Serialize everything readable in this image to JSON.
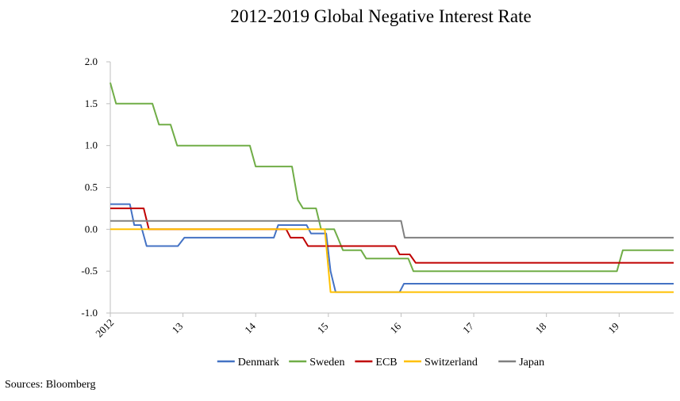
{
  "chart_data": {
    "type": "line",
    "title": "2012-2019 Global Negative Interest Rate",
    "xlabel": "",
    "ylabel": "",
    "xlim": [
      2012.0,
      2019.75
    ],
    "ylim": [
      -1.0,
      2.0
    ],
    "y_ticks": [
      2.0,
      1.5,
      1.0,
      0.5,
      0.0,
      -0.5,
      -1.0
    ],
    "y_tick_labels": [
      "2.0",
      "1.5",
      "1.0",
      "0.5",
      "0.0",
      "-0.5",
      "-1.0"
    ],
    "x_ticks": [
      2012,
      2013,
      2014,
      2015,
      2016,
      2017,
      2018,
      2019
    ],
    "x_tick_labels": [
      "2012",
      "13",
      "14",
      "15",
      "16",
      "17",
      "18",
      "19"
    ],
    "grid": false,
    "legend_position": "bottom",
    "series": [
      {
        "name": "Denmark",
        "color": "#4472C4",
        "points": [
          [
            2012.0,
            0.3
          ],
          [
            2012.27,
            0.3
          ],
          [
            2012.33,
            0.05
          ],
          [
            2012.42,
            0.05
          ],
          [
            2012.5,
            -0.2
          ],
          [
            2012.93,
            -0.2
          ],
          [
            2013.02,
            -0.1
          ],
          [
            2014.25,
            -0.1
          ],
          [
            2014.31,
            0.05
          ],
          [
            2014.7,
            0.05
          ],
          [
            2014.76,
            -0.05
          ],
          [
            2014.97,
            -0.05
          ],
          [
            2015.03,
            -0.5
          ],
          [
            2015.1,
            -0.75
          ],
          [
            2015.98,
            -0.75
          ],
          [
            2016.04,
            -0.65
          ],
          [
            2019.75,
            -0.65
          ]
        ]
      },
      {
        "name": "Sweden",
        "color": "#70AD47",
        "points": [
          [
            2012.0,
            1.75
          ],
          [
            2012.08,
            1.5
          ],
          [
            2012.58,
            1.5
          ],
          [
            2012.67,
            1.25
          ],
          [
            2012.83,
            1.25
          ],
          [
            2012.92,
            1.0
          ],
          [
            2013.92,
            1.0
          ],
          [
            2014.0,
            0.75
          ],
          [
            2014.5,
            0.75
          ],
          [
            2014.58,
            0.35
          ],
          [
            2014.65,
            0.25
          ],
          [
            2014.83,
            0.25
          ],
          [
            2014.9,
            0.0
          ],
          [
            2015.08,
            0.0
          ],
          [
            2015.13,
            -0.1
          ],
          [
            2015.2,
            -0.25
          ],
          [
            2015.45,
            -0.25
          ],
          [
            2015.52,
            -0.35
          ],
          [
            2016.1,
            -0.35
          ],
          [
            2016.17,
            -0.5
          ],
          [
            2018.97,
            -0.5
          ],
          [
            2019.05,
            -0.25
          ],
          [
            2019.75,
            -0.25
          ]
        ]
      },
      {
        "name": "ECB",
        "color": "#C00000",
        "points": [
          [
            2012.0,
            0.25
          ],
          [
            2012.46,
            0.25
          ],
          [
            2012.53,
            0.0
          ],
          [
            2014.42,
            0.0
          ],
          [
            2014.48,
            -0.1
          ],
          [
            2014.65,
            -0.1
          ],
          [
            2014.72,
            -0.2
          ],
          [
            2015.92,
            -0.2
          ],
          [
            2015.98,
            -0.3
          ],
          [
            2016.12,
            -0.3
          ],
          [
            2016.2,
            -0.4
          ],
          [
            2019.75,
            -0.4
          ]
        ]
      },
      {
        "name": "Switzerland",
        "color": "#FFC000",
        "points": [
          [
            2012.0,
            0.0
          ],
          [
            2014.95,
            0.0
          ],
          [
            2015.03,
            -0.75
          ],
          [
            2019.75,
            -0.75
          ]
        ]
      },
      {
        "name": "Japan",
        "color": "#808080",
        "points": [
          [
            2012.0,
            0.1
          ],
          [
            2016.0,
            0.1
          ],
          [
            2016.05,
            -0.1
          ],
          [
            2019.75,
            -0.1
          ]
        ]
      }
    ]
  },
  "footer": {
    "source": "Sources: Bloomberg"
  }
}
